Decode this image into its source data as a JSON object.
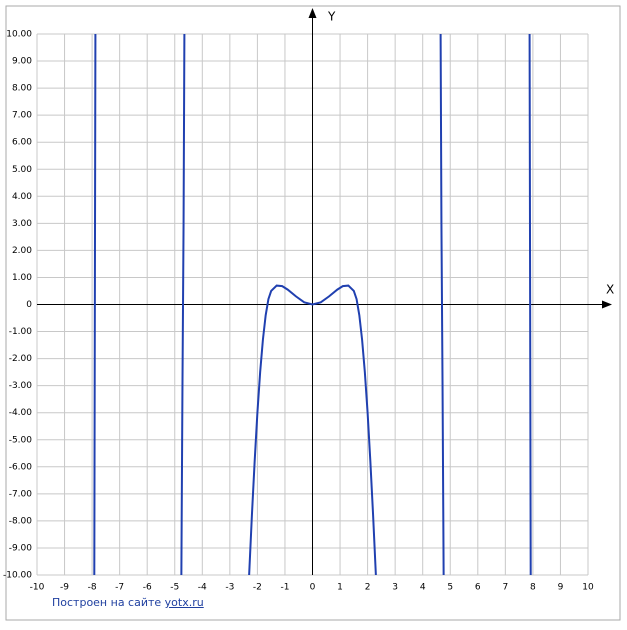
{
  "chart_data": {
    "type": "line",
    "x_label": "X",
    "y_label": "Y",
    "xlim": [
      -10,
      10
    ],
    "ylim": [
      -10,
      10
    ],
    "xticks": [
      -10,
      -9,
      -8,
      -7,
      -6,
      -5,
      -4,
      -3,
      -2,
      -1,
      0,
      1,
      2,
      3,
      4,
      5,
      6,
      7,
      8,
      9,
      10
    ],
    "yticks": [
      {
        "value": -10,
        "label": "-10.00"
      },
      {
        "value": -9,
        "label": "-9.00"
      },
      {
        "value": -8,
        "label": "-8.00"
      },
      {
        "value": -7,
        "label": "-7.00"
      },
      {
        "value": -6,
        "label": "-6.00"
      },
      {
        "value": -5,
        "label": "-5.00"
      },
      {
        "value": -4,
        "label": "-4.00"
      },
      {
        "value": -3,
        "label": "-3.00"
      },
      {
        "value": -2,
        "label": "-2.00"
      },
      {
        "value": -1,
        "label": "-1.00"
      },
      0,
      {
        "value": 1,
        "label": "1.00"
      },
      {
        "value": 2,
        "label": "2.00"
      },
      {
        "value": 3,
        "label": "3.00"
      },
      {
        "value": 4,
        "label": "4.00"
      },
      {
        "value": 5,
        "label": "5.00"
      },
      {
        "value": 6,
        "label": "6.00"
      },
      {
        "value": 7,
        "label": "7.00"
      },
      {
        "value": 8,
        "label": "8.00"
      },
      {
        "value": 9,
        "label": "9.00"
      },
      {
        "value": 10,
        "label": "10.00"
      }
    ],
    "grid": true,
    "series": [
      {
        "color": "#2040b0",
        "x": [
          -7.92,
          -7.88,
          null,
          -4.76,
          -4.72,
          -4.68,
          -4.65,
          null,
          -2.3,
          -2.2,
          -2.1,
          -2.0,
          -1.9,
          -1.8,
          -1.7,
          -1.6,
          -1.5,
          -1.3,
          -1.1,
          -0.9,
          -0.6,
          -0.3,
          0,
          0.3,
          0.6,
          0.9,
          1.1,
          1.3,
          1.5,
          1.6,
          1.7,
          1.8,
          1.9,
          2.0,
          2.1,
          2.2,
          2.3,
          null,
          4.65,
          4.68,
          4.72,
          4.76,
          null,
          7.88,
          7.92
        ],
        "values": [
          -10,
          10,
          null,
          -10,
          -3,
          3,
          10,
          null,
          -10,
          -7.8,
          -5.8,
          -4.0,
          -2.5,
          -1.3,
          -0.4,
          0.2,
          0.5,
          0.7,
          0.68,
          0.55,
          0.3,
          0.08,
          0,
          0.08,
          0.3,
          0.55,
          0.68,
          0.7,
          0.5,
          0.2,
          -0.4,
          -1.3,
          -2.5,
          -4.0,
          -5.8,
          -7.8,
          -10,
          null,
          10,
          3,
          -3,
          -10,
          null,
          10,
          -10
        ]
      }
    ]
  },
  "footer": {
    "text": "Построен на сайте",
    "link": "yotx.ru"
  }
}
